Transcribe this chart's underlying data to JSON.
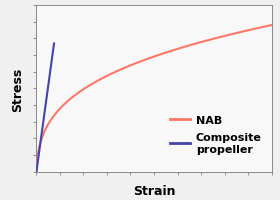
{
  "title": "",
  "xlabel": "Strain",
  "ylabel": "Stress",
  "background_color": "#f0f0f0",
  "plot_bg_color": "#f8f8f8",
  "nab_color": "#ff7766",
  "composite_color": "#4444aa",
  "legend_nab": "NAB",
  "legend_composite": "Composite\npropeller",
  "xlim": [
    0,
    1
  ],
  "ylim": [
    0,
    1
  ],
  "xlabel_fontsize": 9,
  "ylabel_fontsize": 9,
  "legend_fontsize": 8
}
